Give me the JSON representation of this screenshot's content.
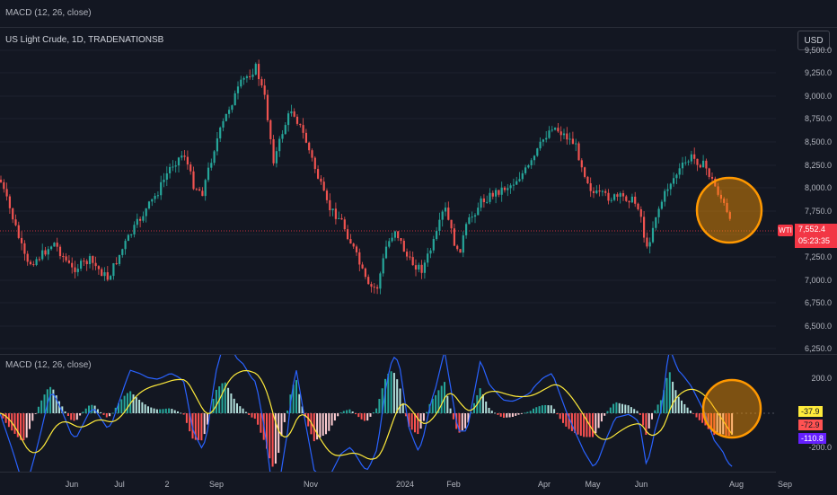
{
  "topbar": {
    "indicator_title": "MACD (12, 26, close)"
  },
  "chart": {
    "symbol_title": "US Light Crude, 1D, TRADENATIONSB",
    "currency_button": "USD",
    "symbol_tag": "WTI",
    "last_price": "7,552.4",
    "countdown": "05:23:35",
    "price_ticks": [
      "9,500.0",
      "9,250.0",
      "9,000.0",
      "8,750.0",
      "8,500.0",
      "8,250.0",
      "8,000.0",
      "7,750.0",
      "7,500.0",
      "7,250.0",
      "7,000.0",
      "6,750.0",
      "6,500.0",
      "6,250.0"
    ]
  },
  "macd": {
    "title": "MACD (12, 26, close)",
    "ticks": [
      "200.0",
      "-200.0"
    ],
    "values": {
      "signal": "-37.9",
      "histogram": "-72.9",
      "macd": "-110.8"
    }
  },
  "time_axis": {
    "labels": [
      "Jun",
      "Jul",
      "2",
      "Sep",
      "Nov",
      "2024",
      "Feb",
      "Apr",
      "May",
      "Jun",
      "Aug",
      "Sep"
    ]
  },
  "colors": {
    "background": "#131722",
    "up_candle": "#26a69a",
    "down_candle": "#ef5350",
    "macd_line": "#2962ff",
    "signal_line": "#ffeb3b",
    "highlight_circle": "#ff9800",
    "price_tag": "#f23645"
  }
}
